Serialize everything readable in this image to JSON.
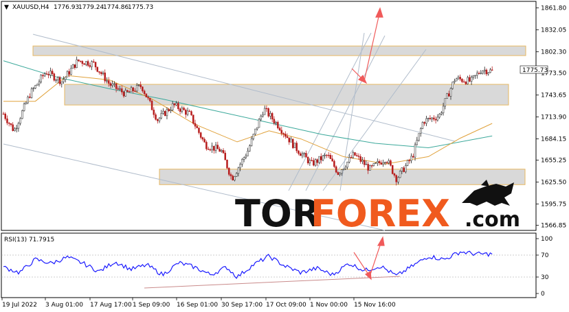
{
  "chart_data": [
    {
      "type": "candlestick",
      "symbol_header": "XAUUSD,H4",
      "ohlc_readout": [
        "1776.93",
        "1779.24",
        "1774.86",
        "1775.73"
      ],
      "y_ticks": [
        "1861.80",
        "1832.05",
        "1802.30",
        "1773.50",
        "1743.65",
        "1713.90",
        "1684.15",
        "1655.25",
        "1625.50",
        "1595.75",
        "1566.85"
      ],
      "ylim": [
        1561.8,
        1866.8
      ],
      "x_ticks": [
        "19 Jul 2022",
        "3 Aug 01:00",
        "17 Aug 17:00",
        "1 Sep 09:00",
        "16 Sep 01:00",
        "30 Sep 17:00",
        "17 Oct 09:00",
        "1 Nov 00:00",
        "15 Nov 16:00"
      ],
      "current_price": "1775.73",
      "zones": [
        {
          "from": 1797,
          "to": 1810
        },
        {
          "from": 1730,
          "to": 1758
        },
        {
          "from": 1622,
          "to": 1643
        }
      ],
      "price_path": [
        {
          "x": 0,
          "y": 1718
        },
        {
          "x": 0.02,
          "y": 1695
        },
        {
          "x": 0.05,
          "y": 1745
        },
        {
          "x": 0.08,
          "y": 1775
        },
        {
          "x": 0.11,
          "y": 1762
        },
        {
          "x": 0.14,
          "y": 1790
        },
        {
          "x": 0.17,
          "y": 1786
        },
        {
          "x": 0.2,
          "y": 1758
        },
        {
          "x": 0.23,
          "y": 1745
        },
        {
          "x": 0.26,
          "y": 1756
        },
        {
          "x": 0.29,
          "y": 1710
        },
        {
          "x": 0.32,
          "y": 1730
        },
        {
          "x": 0.35,
          "y": 1718
        },
        {
          "x": 0.38,
          "y": 1676
        },
        {
          "x": 0.41,
          "y": 1668
        },
        {
          "x": 0.43,
          "y": 1630
        },
        {
          "x": 0.46,
          "y": 1668
        },
        {
          "x": 0.49,
          "y": 1725
        },
        {
          "x": 0.52,
          "y": 1700
        },
        {
          "x": 0.55,
          "y": 1672
        },
        {
          "x": 0.58,
          "y": 1650
        },
        {
          "x": 0.61,
          "y": 1662
        },
        {
          "x": 0.63,
          "y": 1638
        },
        {
          "x": 0.66,
          "y": 1663
        },
        {
          "x": 0.69,
          "y": 1643
        },
        {
          "x": 0.72,
          "y": 1658
        },
        {
          "x": 0.74,
          "y": 1630
        },
        {
          "x": 0.77,
          "y": 1660
        },
        {
          "x": 0.79,
          "y": 1708
        },
        {
          "x": 0.82,
          "y": 1715
        },
        {
          "x": 0.85,
          "y": 1766
        },
        {
          "x": 0.88,
          "y": 1762
        },
        {
          "x": 0.9,
          "y": 1778
        },
        {
          "x": 0.92,
          "y": 1775.73
        }
      ],
      "ma_slow": [
        {
          "x": 0,
          "y": 1790
        },
        {
          "x": 0.1,
          "y": 1768
        },
        {
          "x": 0.2,
          "y": 1752
        },
        {
          "x": 0.3,
          "y": 1738
        },
        {
          "x": 0.4,
          "y": 1722
        },
        {
          "x": 0.5,
          "y": 1706
        },
        {
          "x": 0.6,
          "y": 1690
        },
        {
          "x": 0.7,
          "y": 1678
        },
        {
          "x": 0.8,
          "y": 1672
        },
        {
          "x": 0.92,
          "y": 1688
        }
      ],
      "ma_fast": [
        {
          "x": 0,
          "y": 1735
        },
        {
          "x": 0.06,
          "y": 1735
        },
        {
          "x": 0.12,
          "y": 1770
        },
        {
          "x": 0.2,
          "y": 1764
        },
        {
          "x": 0.28,
          "y": 1738
        },
        {
          "x": 0.36,
          "y": 1704
        },
        {
          "x": 0.44,
          "y": 1680
        },
        {
          "x": 0.5,
          "y": 1695
        },
        {
          "x": 0.56,
          "y": 1684
        },
        {
          "x": 0.64,
          "y": 1660
        },
        {
          "x": 0.72,
          "y": 1650
        },
        {
          "x": 0.8,
          "y": 1660
        },
        {
          "x": 0.86,
          "y": 1685
        },
        {
          "x": 0.92,
          "y": 1705
        }
      ]
    },
    {
      "type": "line",
      "indicator_header": "RSI(13) 71.7915",
      "y_ticks": [
        "100",
        "70",
        "30",
        "0"
      ],
      "levels": [
        70,
        30
      ],
      "ylim": [
        0,
        100
      ],
      "rsi_path": [
        {
          "x": 0,
          "y": 48
        },
        {
          "x": 0.03,
          "y": 38
        },
        {
          "x": 0.06,
          "y": 62
        },
        {
          "x": 0.09,
          "y": 55
        },
        {
          "x": 0.12,
          "y": 66
        },
        {
          "x": 0.15,
          "y": 55
        },
        {
          "x": 0.18,
          "y": 40
        },
        {
          "x": 0.21,
          "y": 58
        },
        {
          "x": 0.24,
          "y": 44
        },
        {
          "x": 0.27,
          "y": 52
        },
        {
          "x": 0.3,
          "y": 34
        },
        {
          "x": 0.33,
          "y": 56
        },
        {
          "x": 0.36,
          "y": 48
        },
        {
          "x": 0.39,
          "y": 34
        },
        {
          "x": 0.42,
          "y": 48
        },
        {
          "x": 0.44,
          "y": 30
        },
        {
          "x": 0.47,
          "y": 52
        },
        {
          "x": 0.5,
          "y": 68
        },
        {
          "x": 0.53,
          "y": 50
        },
        {
          "x": 0.56,
          "y": 38
        },
        {
          "x": 0.59,
          "y": 46
        },
        {
          "x": 0.62,
          "y": 34
        },
        {
          "x": 0.65,
          "y": 55
        },
        {
          "x": 0.68,
          "y": 42
        },
        {
          "x": 0.71,
          "y": 50
        },
        {
          "x": 0.74,
          "y": 32
        },
        {
          "x": 0.77,
          "y": 50
        },
        {
          "x": 0.8,
          "y": 68
        },
        {
          "x": 0.83,
          "y": 62
        },
        {
          "x": 0.86,
          "y": 76
        },
        {
          "x": 0.89,
          "y": 72
        },
        {
          "x": 0.92,
          "y": 71.79
        }
      ]
    }
  ],
  "logo": {
    "part1": "TOR",
    "part2": "FOREX",
    "part3": ".com"
  },
  "colors": {
    "price": "#b71c1c",
    "ma_slow": "#3aa89a",
    "ma_fast": "#e0a13a",
    "rsi": "#1a1aff",
    "arrow": "#f05a5a",
    "zone_fill": "#d9d9d9",
    "zone_border": "#e8b860",
    "trend": "#b0bccb",
    "support": "#c98a8a"
  }
}
